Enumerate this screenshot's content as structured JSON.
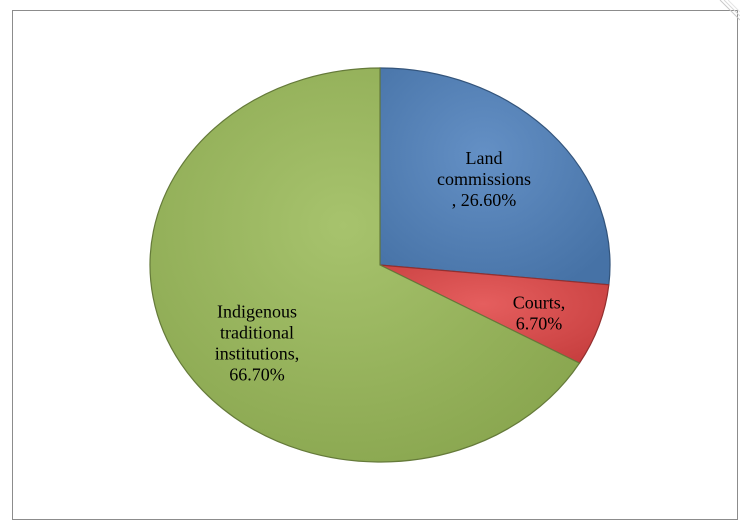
{
  "chart_data": {
    "type": "pie",
    "title": "",
    "start_angle_deg": 90,
    "direction": "clockwise",
    "slices": [
      {
        "name": "Land commissions",
        "value": 26.6,
        "label_lines": [
          "Land",
          "commissions",
          ", 26.60%"
        ],
        "color": "#4f81bd"
      },
      {
        "name": "Courts",
        "value": 6.7,
        "label_lines": [
          "Courts,",
          "6.70%"
        ],
        "color": "#e24848"
      },
      {
        "name": "Indigenous traditional institutions",
        "value": 66.7,
        "label_lines": [
          "Indigenous",
          "traditional",
          "institutions,",
          "66.70%"
        ],
        "color": "#9bbb59"
      }
    ],
    "legend": "none"
  }
}
